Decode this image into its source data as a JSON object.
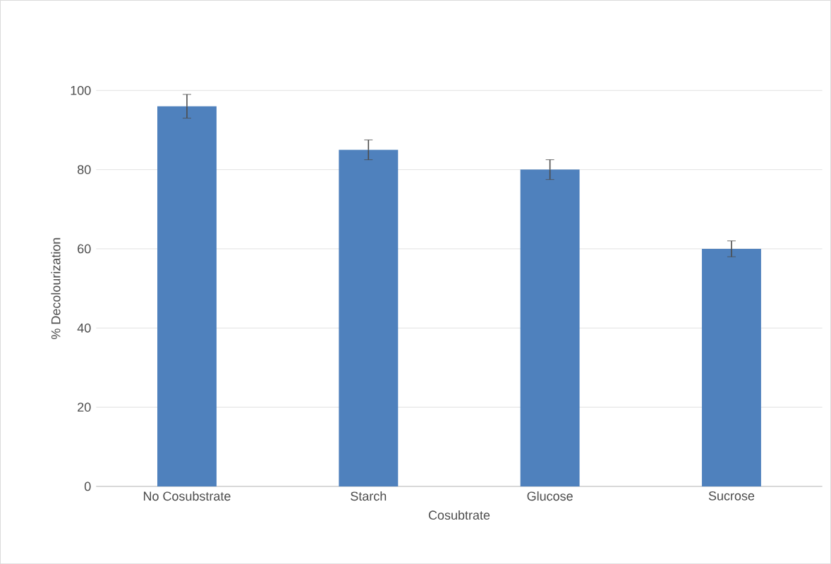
{
  "chart_data": {
    "type": "bar",
    "xlabel": "Cosubtrate",
    "ylabel": "% Decolourization",
    "categories": [
      "No Cosubstrate",
      "Starch",
      "Glucose",
      "Sucrose"
    ],
    "values": [
      96,
      85,
      80,
      60
    ],
    "errors": [
      3,
      2.5,
      2.5,
      2
    ],
    "color": "#4f81bd",
    "ylim": [
      0,
      100
    ],
    "yticks": [
      0,
      20,
      40,
      60,
      80,
      100
    ],
    "grid": "y"
  }
}
